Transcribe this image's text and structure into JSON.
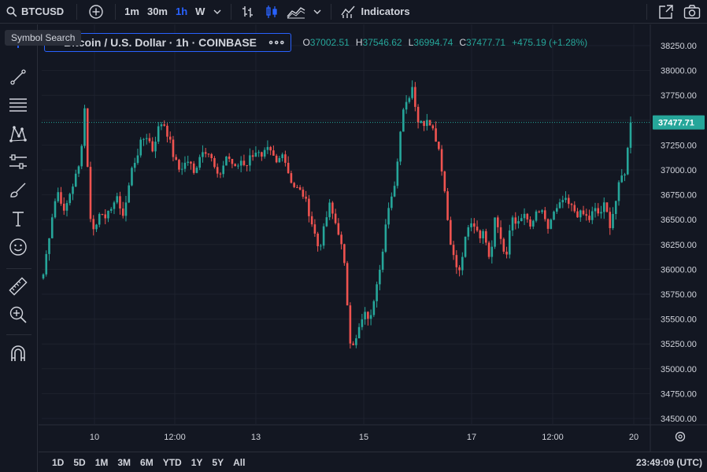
{
  "toolbar": {
    "symbol": "BTCUSD",
    "intervals": [
      "1m",
      "30m",
      "1h",
      "W"
    ],
    "active_interval": "1h",
    "indicators_label": "Indicators"
  },
  "tooltip": "Symbol Search",
  "legend": {
    "title": "Bitcoin / U.S. Dollar · 1h · COINBASE",
    "more": "∘∘∘",
    "open_key": "O",
    "open": "37002.51",
    "high_key": "H",
    "high": "37546.62",
    "low_key": "L",
    "low": "36994.74",
    "close_key": "C",
    "close": "37477.71",
    "change": "+475.19 (+1.28%)"
  },
  "price_axis": {
    "labels": [
      "38250.00",
      "38000.00",
      "37750.00",
      "37500.00",
      "37250.00",
      "37000.00",
      "36750.00",
      "36500.00",
      "36250.00",
      "36000.00",
      "35750.00",
      "35500.00",
      "35250.00",
      "35000.00",
      "34750.00",
      "34500.00"
    ],
    "current_price": "37477.71"
  },
  "time_axis": {
    "labels": [
      "10",
      "12:00",
      "13",
      "15",
      "17",
      "12:00",
      "20"
    ]
  },
  "ranges": [
    "1D",
    "5D",
    "1M",
    "3M",
    "6M",
    "YTD",
    "1Y",
    "5Y",
    "All"
  ],
  "clock": "23:49:09 (UTC)",
  "colors": {
    "up": "#26a69a",
    "down": "#ef5350",
    "accent": "#2962ff",
    "bg": "#131722",
    "grid": "#1e222d"
  },
  "chart_data": {
    "type": "candlestick",
    "symbol": "Bitcoin / U.S. Dollar",
    "interval": "1h",
    "ylim": [
      34400,
      38400
    ],
    "y_ticks": [
      34500,
      34750,
      35000,
      35250,
      35500,
      35750,
      36000,
      36250,
      36500,
      36750,
      37000,
      37250,
      37500,
      37750,
      38000,
      38250
    ],
    "x_labels": [
      "10",
      "12:00",
      "13",
      "15",
      "17",
      "12:00",
      "20"
    ],
    "close_path": [
      35950,
      36300,
      36650,
      36800,
      36550,
      36750,
      36900,
      37050,
      37650,
      36500,
      36400,
      36600,
      36550,
      36550,
      36800,
      36500,
      36700,
      37000,
      37150,
      37300,
      37350,
      37200,
      37400,
      37500,
      37350,
      37150,
      37000,
      37050,
      37100,
      36950,
      37150,
      37200,
      37200,
      37000,
      36900,
      37150,
      37100,
      37000,
      37100,
      37050,
      37150,
      37200,
      37100,
      37200,
      37150,
      37050,
      37200,
      37000,
      36850,
      36800,
      36750,
      36600,
      36400,
      36200,
      36400,
      36650,
      36500,
      36350,
      36000,
      35300,
      35250,
      35450,
      35550,
      35500,
      35850,
      36100,
      36500,
      36700,
      37000,
      37600,
      37700,
      37850,
      37500,
      37450,
      37550,
      37400,
      37250,
      36900,
      36400,
      36100,
      35950,
      36250,
      36450,
      36450,
      36350,
      36350,
      36100,
      36600,
      36300,
      36100,
      36500,
      36450,
      36550,
      36500,
      36400,
      36600,
      36550,
      36400,
      36550,
      36600,
      36700,
      36650,
      36600,
      36550,
      36550,
      36500,
      36600,
      36550,
      36650,
      36450,
      36650,
      36900,
      37000,
      37477.71
    ],
    "current_price": 37477.71
  }
}
